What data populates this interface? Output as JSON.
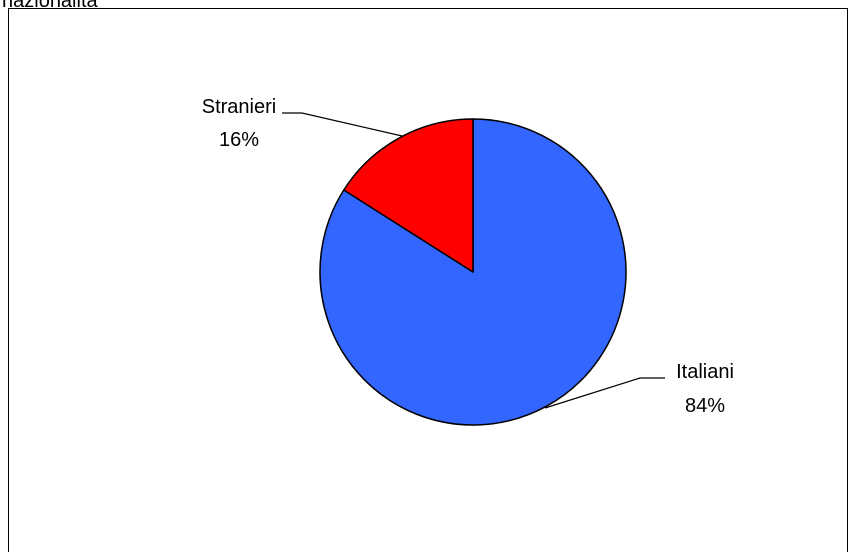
{
  "chart_data": {
    "type": "pie",
    "title": "nazionalità",
    "slices": [
      {
        "label": "Italiani",
        "percent_label": "84%",
        "value": 84,
        "color": "#3366FF"
      },
      {
        "label": "Stranieri",
        "percent_label": "16%",
        "value": 16,
        "color": "#FF0000"
      }
    ],
    "start": "12 o'clock",
    "direction": "clockwise",
    "slice_border_color": "#000000",
    "leader_line_color": "#000000"
  }
}
